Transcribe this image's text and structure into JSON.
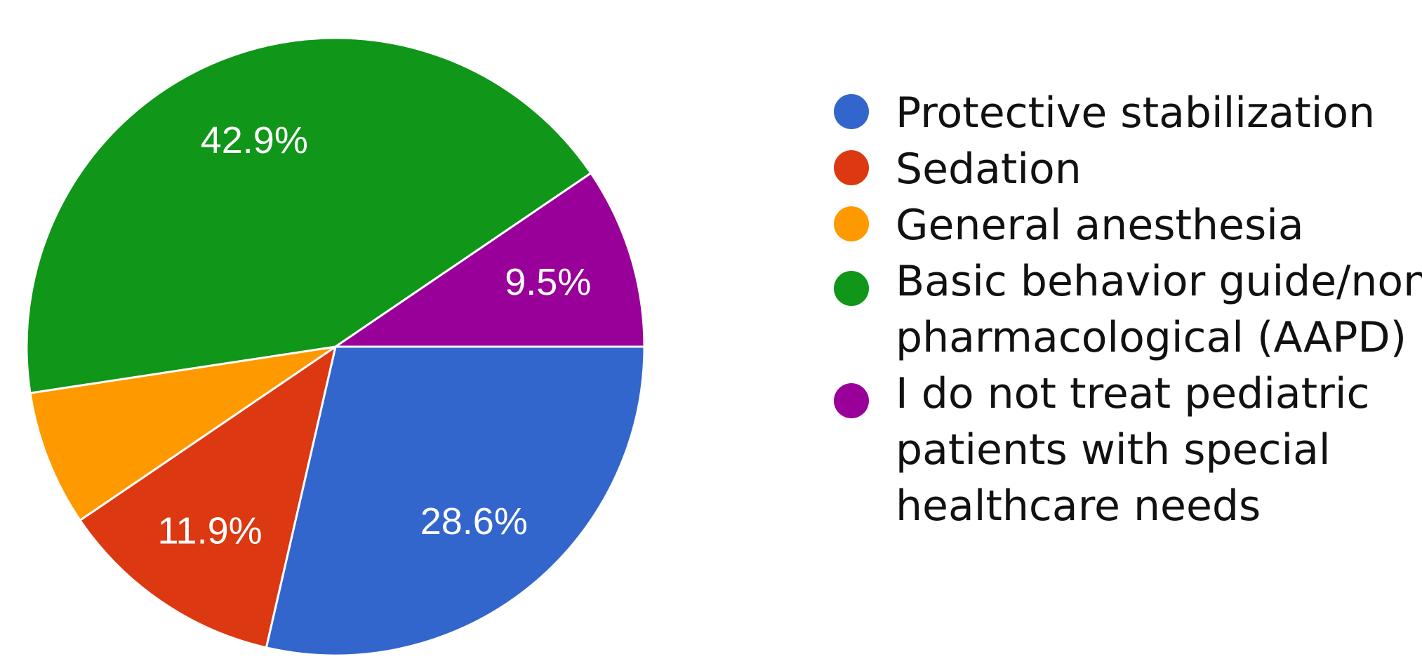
{
  "chart_data": {
    "type": "pie",
    "title": "",
    "slices": [
      {
        "label": "Protective stabilization",
        "legend_lines": [
          "Protective stabilization"
        ],
        "value": 28.6,
        "display": "28.6%",
        "color": "#3366cc"
      },
      {
        "label": "Sedation",
        "legend_lines": [
          "Sedation"
        ],
        "value": 11.9,
        "display": "11.9%",
        "color": "#dc3912"
      },
      {
        "label": "General anesthesia",
        "legend_lines": [
          "General anesthesia"
        ],
        "value": 7.1,
        "display": "",
        "color": "#ff9900"
      },
      {
        "label": "Basic behavior guide/non pharmacological (AAPD)",
        "legend_lines": [
          "Basic behavior guide/non",
          "pharmacological (AAPD)"
        ],
        "value": 42.9,
        "display": "42.9%",
        "color": "#109618"
      },
      {
        "label": "I do not treat pediatric patients with special healthcare needs",
        "legend_lines": [
          "I do not treat pediatric",
          "patients with special",
          "healthcare needs"
        ],
        "value": 9.5,
        "display": "9.5%",
        "color": "#990099"
      }
    ],
    "legend_position": "right",
    "start_angle_deg": 90,
    "direction": "clockwise"
  }
}
